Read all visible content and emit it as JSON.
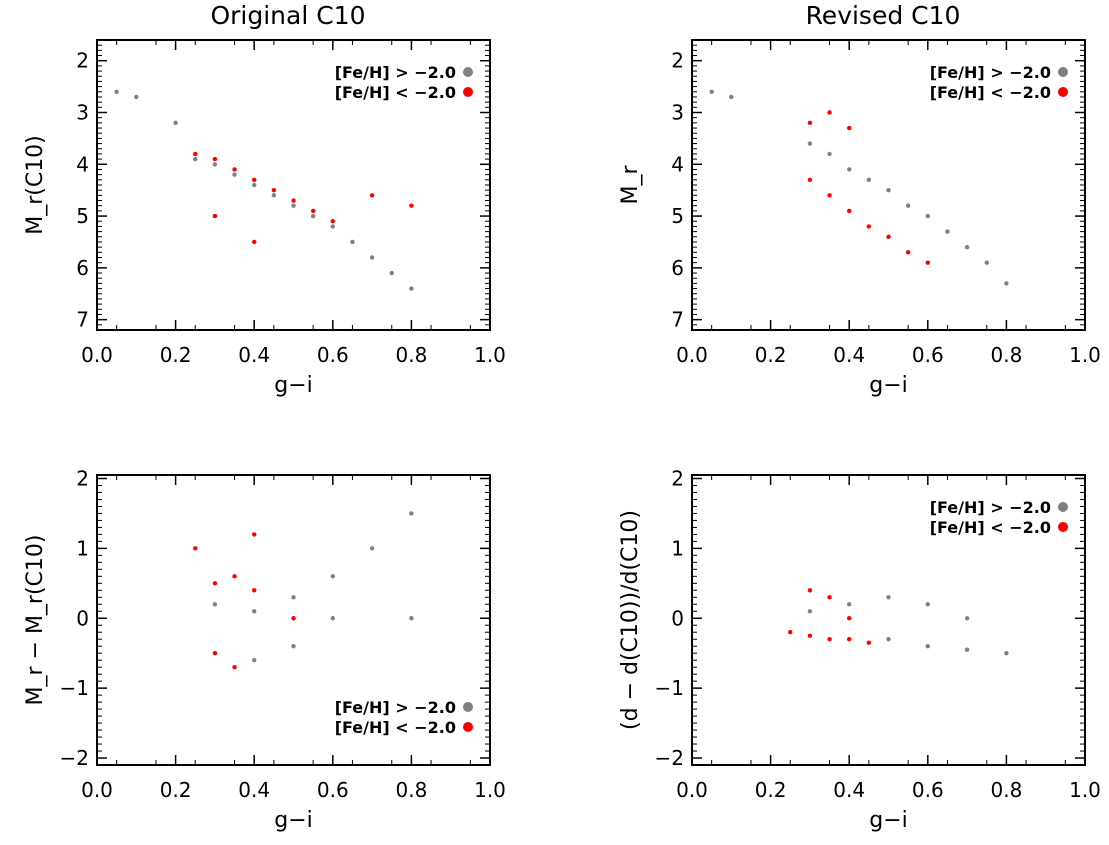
{
  "figure": {
    "titles": {
      "left": "Original C10",
      "right": "Revised C10"
    }
  },
  "colors": {
    "metal_rich": "#808080",
    "metal_poor": "#ff0000"
  },
  "legend": {
    "entry_rich": "[Fe/H] > −2.0",
    "entry_poor": "[Fe/H] < −2.0"
  },
  "chart_data": [
    {
      "type": "scatter",
      "panel": "top-left",
      "title": "Original C10",
      "xlabel": "g−i",
      "ylabel": "M_r(C10)",
      "xlim": [
        0.0,
        1.0
      ],
      "ylim": [
        7.2,
        1.6
      ],
      "y_inverted": true,
      "xticks": [
        "0.0",
        "0.2",
        "0.4",
        "0.6",
        "0.8",
        "1.0"
      ],
      "yticks": [
        "2",
        "3",
        "4",
        "5",
        "6",
        "7"
      ],
      "legend_position": "top-right",
      "series": [
        {
          "name": "[Fe/H] > −2.0",
          "color": "#808080",
          "points": [
            [
              0.25,
              3.9
            ],
            [
              0.3,
              4.0
            ],
            [
              0.35,
              4.2
            ],
            [
              0.4,
              4.4
            ],
            [
              0.45,
              4.6
            ],
            [
              0.5,
              4.8
            ],
            [
              0.55,
              5.0
            ],
            [
              0.6,
              5.2
            ],
            [
              0.65,
              5.5
            ],
            [
              0.7,
              5.8
            ],
            [
              0.75,
              6.1
            ],
            [
              0.8,
              6.4
            ],
            [
              0.2,
              3.2
            ],
            [
              0.1,
              2.7
            ],
            [
              0.05,
              2.6
            ]
          ]
        },
        {
          "name": "[Fe/H] < −2.0",
          "color": "#ff0000",
          "points": [
            [
              0.25,
              3.8
            ],
            [
              0.3,
              3.9
            ],
            [
              0.35,
              4.1
            ],
            [
              0.4,
              4.3
            ],
            [
              0.45,
              4.5
            ],
            [
              0.5,
              4.7
            ],
            [
              0.55,
              4.9
            ],
            [
              0.6,
              5.1
            ],
            [
              0.7,
              4.6
            ],
            [
              0.8,
              4.8
            ],
            [
              0.3,
              5.0
            ],
            [
              0.4,
              5.5
            ]
          ]
        }
      ]
    },
    {
      "type": "scatter",
      "panel": "top-right",
      "title": "Revised C10",
      "xlabel": "g−i",
      "ylabel": "M_r",
      "xlim": [
        0.0,
        1.0
      ],
      "ylim": [
        7.2,
        1.6
      ],
      "y_inverted": true,
      "xticks": [
        "0.0",
        "0.2",
        "0.4",
        "0.6",
        "0.8",
        "1.0"
      ],
      "yticks": [
        "2",
        "3",
        "4",
        "5",
        "6",
        "7"
      ],
      "legend_position": "top-right",
      "series": [
        {
          "name": "[Fe/H] > −2.0",
          "color": "#808080",
          "points": [
            [
              0.3,
              3.6
            ],
            [
              0.35,
              3.8
            ],
            [
              0.4,
              4.1
            ],
            [
              0.45,
              4.3
            ],
            [
              0.5,
              4.5
            ],
            [
              0.55,
              4.8
            ],
            [
              0.6,
              5.0
            ],
            [
              0.65,
              5.3
            ],
            [
              0.7,
              5.6
            ],
            [
              0.75,
              5.9
            ],
            [
              0.8,
              6.3
            ],
            [
              0.1,
              2.7
            ],
            [
              0.05,
              2.6
            ]
          ]
        },
        {
          "name": "[Fe/H] < −2.0",
          "color": "#ff0000",
          "points": [
            [
              0.3,
              4.3
            ],
            [
              0.35,
              4.6
            ],
            [
              0.4,
              4.9
            ],
            [
              0.45,
              5.2
            ],
            [
              0.5,
              5.4
            ],
            [
              0.55,
              5.7
            ],
            [
              0.6,
              5.9
            ],
            [
              0.35,
              3.0
            ],
            [
              0.4,
              3.3
            ],
            [
              0.3,
              3.2
            ]
          ]
        }
      ]
    },
    {
      "type": "scatter",
      "panel": "bottom-left",
      "title": "",
      "xlabel": "g−i",
      "ylabel": "M_r − M_r(C10)",
      "xlim": [
        0.0,
        1.0
      ],
      "ylim": [
        -2.1,
        2.05
      ],
      "y_inverted": false,
      "xticks": [
        "0.0",
        "0.2",
        "0.4",
        "0.6",
        "0.8",
        "1.0"
      ],
      "yticks": [
        "−2",
        "−1",
        "0",
        "1",
        "2"
      ],
      "legend_position": "bottom-right",
      "series": [
        {
          "name": "[Fe/H] > −2.0",
          "color": "#808080",
          "points": [
            [
              0.3,
              0.2
            ],
            [
              0.4,
              0.1
            ],
            [
              0.5,
              0.3
            ],
            [
              0.6,
              0.6
            ],
            [
              0.7,
              1.0
            ],
            [
              0.8,
              1.5
            ],
            [
              0.4,
              -0.6
            ],
            [
              0.5,
              -0.4
            ],
            [
              0.6,
              0.0
            ],
            [
              0.8,
              0.0
            ]
          ]
        },
        {
          "name": "[Fe/H] < −2.0",
          "color": "#ff0000",
          "points": [
            [
              0.3,
              0.5
            ],
            [
              0.35,
              0.6
            ],
            [
              0.4,
              0.4
            ],
            [
              0.3,
              -0.5
            ],
            [
              0.35,
              -0.7
            ],
            [
              0.25,
              1.0
            ],
            [
              0.4,
              1.2
            ],
            [
              0.5,
              0.0
            ]
          ]
        }
      ]
    },
    {
      "type": "scatter",
      "panel": "bottom-right",
      "title": "",
      "xlabel": "g−i",
      "ylabel": "(d − d(C10))/d(C10)",
      "xlim": [
        0.0,
        1.0
      ],
      "ylim": [
        -2.1,
        2.05
      ],
      "y_inverted": false,
      "xticks": [
        "0.0",
        "0.2",
        "0.4",
        "0.6",
        "0.8",
        "1.0"
      ],
      "yticks": [
        "−2",
        "−1",
        "0",
        "1",
        "2"
      ],
      "legend_position": "top-right",
      "series": [
        {
          "name": "[Fe/H] > −2.0",
          "color": "#808080",
          "points": [
            [
              0.3,
              0.1
            ],
            [
              0.4,
              0.2
            ],
            [
              0.5,
              0.3
            ],
            [
              0.6,
              0.2
            ],
            [
              0.7,
              0.0
            ],
            [
              0.5,
              -0.3
            ],
            [
              0.6,
              -0.4
            ],
            [
              0.7,
              -0.45
            ],
            [
              0.8,
              -0.5
            ]
          ]
        },
        {
          "name": "[Fe/H] < −2.0",
          "color": "#ff0000",
          "points": [
            [
              0.25,
              -0.2
            ],
            [
              0.3,
              -0.25
            ],
            [
              0.35,
              -0.3
            ],
            [
              0.4,
              -0.3
            ],
            [
              0.45,
              -0.35
            ],
            [
              0.35,
              0.3
            ],
            [
              0.3,
              0.4
            ],
            [
              0.4,
              0.0
            ]
          ]
        }
      ]
    }
  ]
}
